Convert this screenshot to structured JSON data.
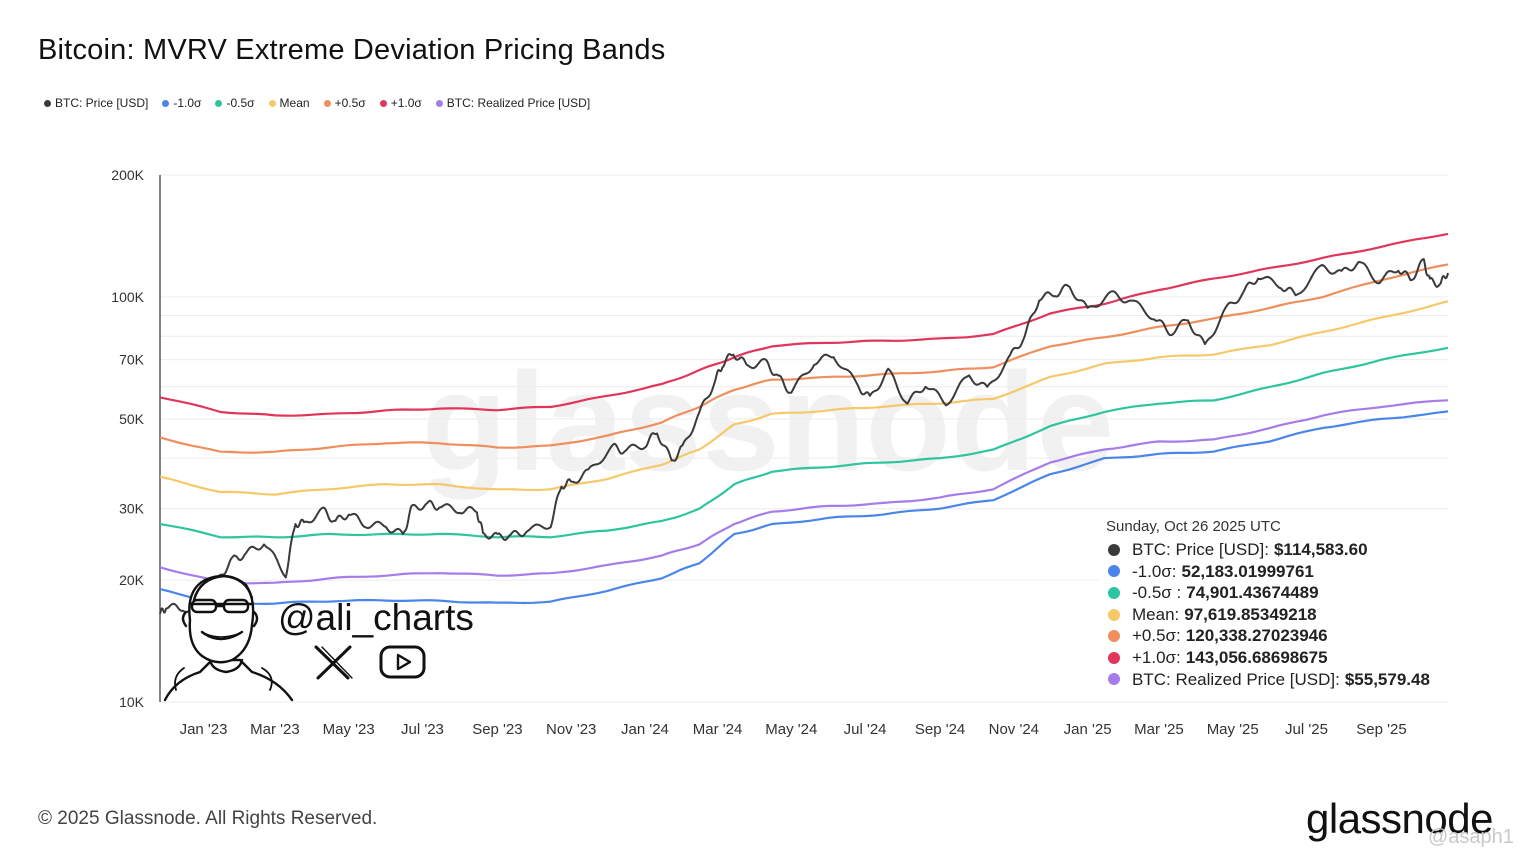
{
  "header": {
    "title": "Bitcoin: MVRV Extreme Deviation Pricing Bands"
  },
  "legend": [
    {
      "label": "BTC: Price [USD]",
      "color": "#3a3a3a"
    },
    {
      "label": "-1.0σ",
      "color": "#4a86e8"
    },
    {
      "label": "-0.5σ",
      "color": "#2ec4a0"
    },
    {
      "label": "Mean",
      "color": "#f5c96a"
    },
    {
      "label": "+0.5σ",
      "color": "#ef8f5e"
    },
    {
      "label": "+1.0σ",
      "color": "#e0365c"
    },
    {
      "label": "BTC: Realized Price [USD]",
      "color": "#a67bea"
    }
  ],
  "tooltip": {
    "date": "Sunday, Oct 26 2025 UTC",
    "rows": [
      {
        "label": "BTC: Price [USD]:",
        "value": "$114,583.60",
        "color": "#3a3a3a"
      },
      {
        "label": "-1.0σ:",
        "value": "52,183.01999761",
        "color": "#4a86e8"
      },
      {
        "label": "-0.5σ :",
        "value": "74,901.43674489",
        "color": "#2ec4a0"
      },
      {
        "label": "Mean:",
        "value": "97,619.85349218",
        "color": "#f5c96a"
      },
      {
        "label": "+0.5σ:",
        "value": "120,338.27023946",
        "color": "#ef8f5e"
      },
      {
        "label": "+1.0σ:",
        "value": "143,056.68698675",
        "color": "#e0365c"
      },
      {
        "label": "BTC: Realized Price [USD]:",
        "value": "$55,579.48",
        "color": "#a67bea"
      }
    ]
  },
  "overlay": {
    "handle": "@ali_charts",
    "watermark": "glassnode",
    "x_icon": "x-logo-icon",
    "youtube_icon": "youtube-icon",
    "avatar_icon": "caricature-avatar-icon"
  },
  "footer": {
    "copyright": "© 2025 Glassnode. All Rights Reserved.",
    "brand": "glassnode",
    "user_watermark": "@asaph1"
  },
  "chart_data": {
    "type": "line",
    "y_scale": "log",
    "y_ticks": [
      {
        "value": 10000,
        "label": "10K"
      },
      {
        "value": 20000,
        "label": "20K"
      },
      {
        "value": 30000,
        "label": "30K"
      },
      {
        "value": 50000,
        "label": "50K"
      },
      {
        "value": 70000,
        "label": "70K"
      },
      {
        "value": 100000,
        "label": "100K"
      },
      {
        "value": 200000,
        "label": "200K"
      }
    ],
    "ylim": [
      10000,
      200000
    ],
    "xlim": [
      "2022-11-26",
      "2025-10-26"
    ],
    "x_ticks": [
      {
        "date": "2023-01-01",
        "label": "Jan '23"
      },
      {
        "date": "2023-03-01",
        "label": "Mar '23"
      },
      {
        "date": "2023-05-01",
        "label": "May '23"
      },
      {
        "date": "2023-07-01",
        "label": "Jul '23"
      },
      {
        "date": "2023-09-01",
        "label": "Sep '23"
      },
      {
        "date": "2023-11-01",
        "label": "Nov '23"
      },
      {
        "date": "2024-01-01",
        "label": "Jan '24"
      },
      {
        "date": "2024-03-01",
        "label": "Mar '24"
      },
      {
        "date": "2024-05-01",
        "label": "May '24"
      },
      {
        "date": "2024-07-01",
        "label": "Jul '24"
      },
      {
        "date": "2024-09-01",
        "label": "Sep '24"
      },
      {
        "date": "2024-11-01",
        "label": "Nov '24"
      },
      {
        "date": "2025-01-01",
        "label": "Jan '25"
      },
      {
        "date": "2025-03-01",
        "label": "Mar '25"
      },
      {
        "date": "2025-05-01",
        "label": "May '25"
      },
      {
        "date": "2025-07-01",
        "label": "Jul '25"
      },
      {
        "date": "2025-09-01",
        "label": "Sep '25"
      }
    ],
    "series": [
      {
        "name": "+1.0σ",
        "color": "#e0365c",
        "width": 2.2,
        "x": [
          "2022-11-26",
          "2023-01-15",
          "2023-03-01",
          "2023-04-15",
          "2023-06-01",
          "2023-07-15",
          "2023-09-01",
          "2023-10-15",
          "2023-12-01",
          "2024-01-15",
          "2024-02-15",
          "2024-03-15",
          "2024-04-15",
          "2024-06-01",
          "2024-07-15",
          "2024-09-01",
          "2024-10-15",
          "2024-12-01",
          "2025-01-15",
          "2025-03-01",
          "2025-04-15",
          "2025-06-01",
          "2025-07-15",
          "2025-09-01",
          "2025-10-26"
        ],
        "values": [
          56500,
          52000,
          51000,
          51500,
          52500,
          53000,
          52500,
          53500,
          57000,
          61000,
          66000,
          71000,
          75500,
          77000,
          78000,
          79000,
          81000,
          91000,
          96000,
          104000,
          111000,
          118000,
          125000,
          133000,
          143056
        ]
      },
      {
        "name": "+0.5σ",
        "color": "#ef8f5e",
        "width": 2.2,
        "x": [
          "2022-11-26",
          "2023-01-15",
          "2023-03-01",
          "2023-04-15",
          "2023-06-01",
          "2023-07-15",
          "2023-09-01",
          "2023-10-15",
          "2023-12-01",
          "2024-01-15",
          "2024-02-15",
          "2024-03-15",
          "2024-04-15",
          "2024-06-01",
          "2024-07-15",
          "2024-09-01",
          "2024-10-15",
          "2024-12-01",
          "2025-01-15",
          "2025-03-01",
          "2025-04-15",
          "2025-06-01",
          "2025-07-15",
          "2025-09-01",
          "2025-10-26"
        ],
        "values": [
          45000,
          41500,
          41500,
          42500,
          43500,
          43500,
          42500,
          43000,
          45500,
          49000,
          53500,
          59000,
          62500,
          63500,
          64500,
          65500,
          67000,
          75500,
          79500,
          84500,
          88500,
          94000,
          100000,
          110000,
          120338
        ]
      },
      {
        "name": "Mean",
        "color": "#f5c96a",
        "width": 2.2,
        "x": [
          "2022-11-26",
          "2023-01-15",
          "2023-03-01",
          "2023-04-15",
          "2023-06-01",
          "2023-07-15",
          "2023-09-01",
          "2023-10-15",
          "2023-12-01",
          "2024-01-15",
          "2024-02-15",
          "2024-03-15",
          "2024-04-15",
          "2024-06-01",
          "2024-07-15",
          "2024-09-01",
          "2024-10-15",
          "2024-12-01",
          "2025-01-15",
          "2025-03-01",
          "2025-04-15",
          "2025-06-01",
          "2025-07-15",
          "2025-09-01",
          "2025-10-26"
        ],
        "values": [
          36000,
          33000,
          32500,
          33500,
          34500,
          34500,
          33500,
          33500,
          35500,
          38500,
          42000,
          48500,
          51500,
          52500,
          53500,
          54500,
          56000,
          63500,
          68500,
          71000,
          72000,
          76000,
          82000,
          89000,
          97620
        ]
      },
      {
        "name": "-0.5σ",
        "color": "#2ec4a0",
        "width": 2.2,
        "x": [
          "2022-11-26",
          "2023-01-15",
          "2023-03-01",
          "2023-04-15",
          "2023-06-01",
          "2023-07-15",
          "2023-09-01",
          "2023-10-15",
          "2023-12-01",
          "2024-01-15",
          "2024-02-15",
          "2024-03-15",
          "2024-04-15",
          "2024-06-01",
          "2024-07-15",
          "2024-09-01",
          "2024-10-15",
          "2024-12-01",
          "2025-01-15",
          "2025-03-01",
          "2025-04-15",
          "2025-06-01",
          "2025-07-15",
          "2025-09-01",
          "2025-10-26"
        ],
        "values": [
          27500,
          25500,
          25500,
          26000,
          26000,
          26000,
          25500,
          25500,
          26500,
          28000,
          30000,
          34500,
          37000,
          38000,
          39000,
          40000,
          42000,
          48000,
          52000,
          54500,
          55500,
          60000,
          65000,
          70000,
          74901
        ]
      },
      {
        "name": "BTC: Realized Price [USD]",
        "color": "#a67bea",
        "width": 2.2,
        "x": [
          "2022-11-26",
          "2023-01-15",
          "2023-03-01",
          "2023-04-15",
          "2023-06-01",
          "2023-07-15",
          "2023-09-01",
          "2023-10-15",
          "2023-12-01",
          "2024-01-15",
          "2024-02-15",
          "2024-03-15",
          "2024-04-15",
          "2024-06-01",
          "2024-07-15",
          "2024-09-01",
          "2024-10-15",
          "2024-12-01",
          "2025-01-15",
          "2025-03-01",
          "2025-04-15",
          "2025-06-01",
          "2025-07-15",
          "2025-09-01",
          "2025-10-26"
        ],
        "values": [
          21500,
          19800,
          19700,
          20200,
          20500,
          20800,
          20500,
          20800,
          21800,
          23000,
          24500,
          27500,
          29500,
          30500,
          31000,
          32000,
          33500,
          39000,
          42000,
          44000,
          44500,
          47500,
          51000,
          53500,
          55579
        ]
      },
      {
        "name": "-1.0σ",
        "color": "#4a86e8",
        "width": 2.2,
        "x": [
          "2022-11-26",
          "2023-01-15",
          "2023-03-01",
          "2023-04-15",
          "2023-06-01",
          "2023-07-15",
          "2023-09-01",
          "2023-10-15",
          "2023-12-01",
          "2024-01-15",
          "2024-02-15",
          "2024-03-15",
          "2024-04-15",
          "2024-06-01",
          "2024-07-15",
          "2024-09-01",
          "2024-10-15",
          "2024-12-01",
          "2025-01-15",
          "2025-03-01",
          "2025-04-15",
          "2025-06-01",
          "2025-07-15",
          "2025-09-01",
          "2025-10-26"
        ],
        "values": [
          19000,
          17500,
          17500,
          17700,
          17800,
          17800,
          17600,
          17700,
          18800,
          20200,
          22000,
          26000,
          27500,
          28500,
          29000,
          30000,
          31500,
          36500,
          40000,
          41000,
          41500,
          44000,
          47500,
          50000,
          52183
        ]
      },
      {
        "name": "BTC: Price [USD]",
        "color": "#3a3a3a",
        "width": 2.0,
        "x": [
          "2022-11-26",
          "2022-12-01",
          "2022-12-15",
          "2023-01-01",
          "2023-01-14",
          "2023-01-25",
          "2023-02-05",
          "2023-02-20",
          "2023-03-10",
          "2023-03-18",
          "2023-03-25",
          "2023-04-10",
          "2023-04-20",
          "2023-05-01",
          "2023-05-15",
          "2023-06-01",
          "2023-06-15",
          "2023-06-22",
          "2023-07-05",
          "2023-07-15",
          "2023-08-01",
          "2023-08-15",
          "2023-08-20",
          "2023-09-01",
          "2023-09-12",
          "2023-09-25",
          "2023-10-15",
          "2023-10-24",
          "2023-11-01",
          "2023-11-15",
          "2023-12-05",
          "2023-12-15",
          "2024-01-01",
          "2024-01-11",
          "2024-01-23",
          "2024-02-01",
          "2024-02-15",
          "2024-02-28",
          "2024-03-05",
          "2024-03-14",
          "2024-03-25",
          "2024-04-10",
          "2024-04-20",
          "2024-05-01",
          "2024-05-20",
          "2024-06-05",
          "2024-06-25",
          "2024-07-05",
          "2024-07-20",
          "2024-08-05",
          "2024-08-20",
          "2024-09-06",
          "2024-09-25",
          "2024-10-10",
          "2024-10-29",
          "2024-11-10",
          "2024-11-22",
          "2024-12-05",
          "2024-12-17",
          "2025-01-01",
          "2025-01-20",
          "2025-02-05",
          "2025-02-25",
          "2025-03-10",
          "2025-03-25",
          "2025-04-08",
          "2025-04-25",
          "2025-05-10",
          "2025-05-22",
          "2025-06-10",
          "2025-06-22",
          "2025-07-14",
          "2025-07-30",
          "2025-08-13",
          "2025-08-30",
          "2025-09-15",
          "2025-09-25",
          "2025-10-06",
          "2025-10-11",
          "2025-10-20",
          "2025-10-26"
        ],
        "values": [
          16500,
          17000,
          16800,
          16600,
          20500,
          22800,
          23300,
          24500,
          20300,
          27500,
          27800,
          30200,
          28000,
          29000,
          27000,
          27000,
          26000,
          30500,
          31000,
          30200,
          29300,
          29400,
          26200,
          26000,
          25900,
          26300,
          27000,
          34000,
          35000,
          37500,
          43000,
          41500,
          42500,
          46000,
          39500,
          43000,
          52000,
          62000,
          67000,
          72000,
          68000,
          70000,
          64000,
          58000,
          68000,
          71000,
          60500,
          57000,
          66500,
          54500,
          60000,
          54000,
          64000,
          60000,
          72000,
          80000,
          98000,
          100500,
          106000,
          94000,
          103000,
          98000,
          88000,
          80500,
          87500,
          76500,
          94000,
          103000,
          111000,
          105000,
          101000,
          120000,
          116000,
          122000,
          108000,
          116000,
          110000,
          124000,
          111000,
          108000,
          114583
        ]
      }
    ]
  }
}
